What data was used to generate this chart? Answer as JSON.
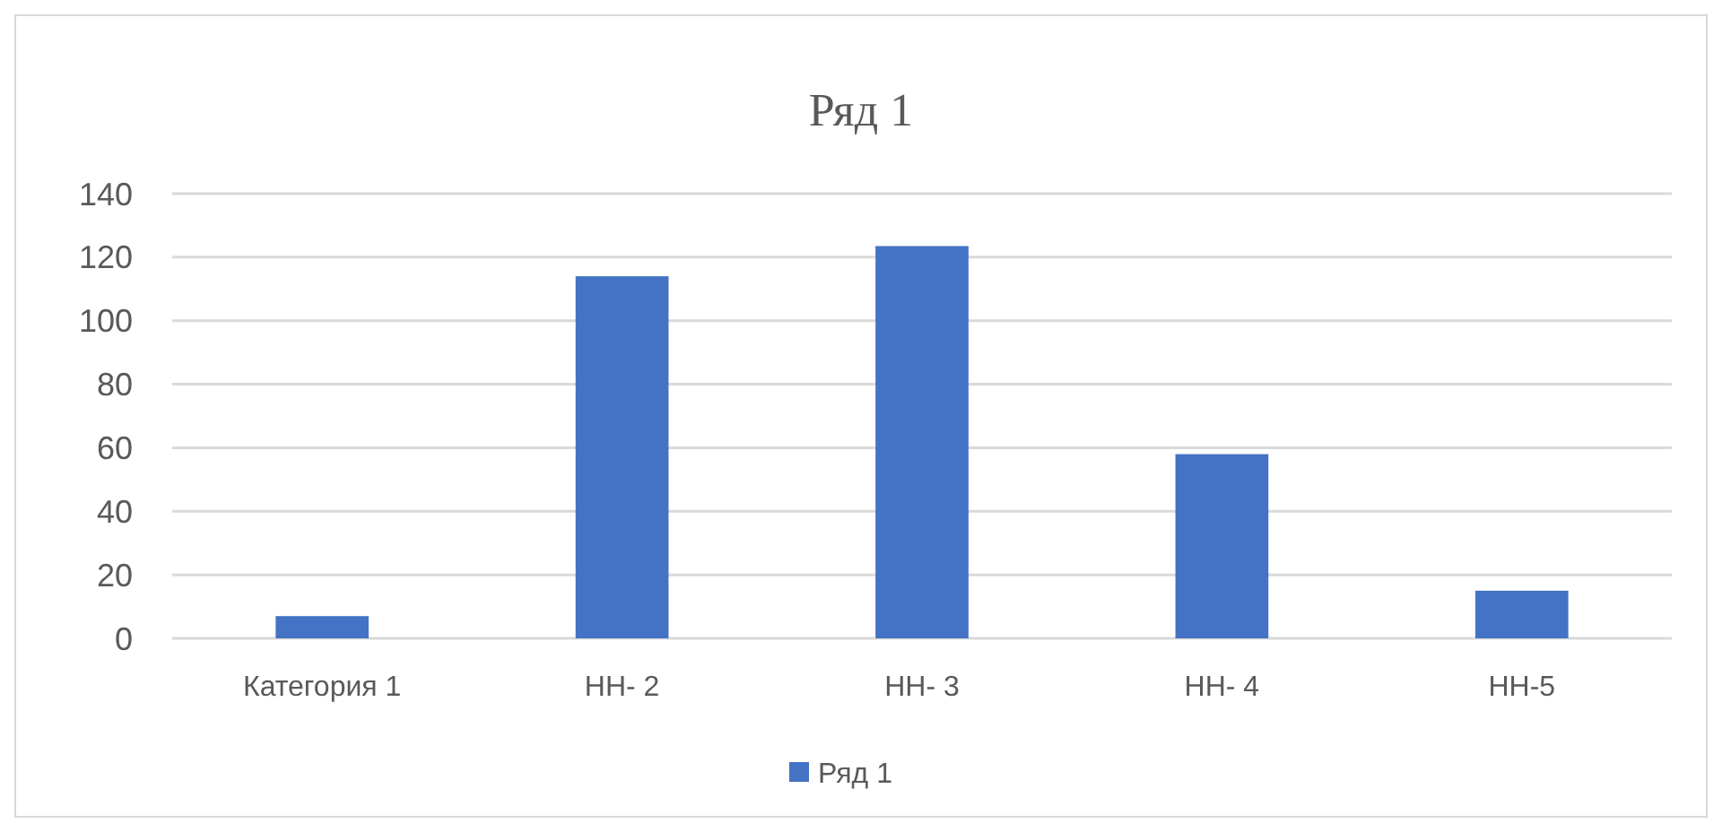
{
  "chart_data": {
    "type": "bar",
    "title": "Ряд 1",
    "categories": [
      "Категория 1",
      "НН- 2",
      "НН- 3",
      "НН- 4",
      "НН-5"
    ],
    "series": [
      {
        "name": "Ряд 1",
        "color": "#4472c4",
        "values": [
          7,
          114,
          123.5,
          58,
          15
        ]
      }
    ],
    "ylim": [
      0,
      140
    ],
    "yticks": [
      0,
      20,
      40,
      60,
      80,
      100,
      120,
      140
    ],
    "grid": "y",
    "legend": "bottom"
  }
}
